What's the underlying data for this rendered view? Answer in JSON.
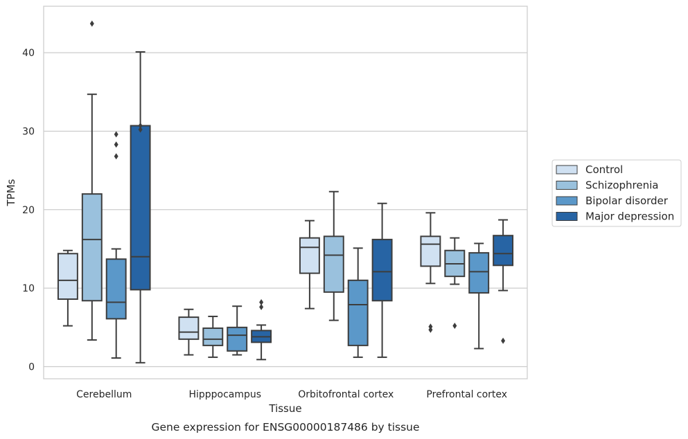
{
  "caption": "Gene expression for ENSG00000187486 by tissue",
  "chart_data": {
    "type": "box",
    "xlabel": "Tissue",
    "ylabel": "TPMs",
    "ylim": [
      -1.6,
      46
    ],
    "yticks": [
      0,
      10,
      20,
      30,
      40
    ],
    "grid": "horizontal",
    "legend_position": "right",
    "categories": [
      "Cerebellum",
      "Hipppocampus",
      "Orbitofrontal cortex",
      "Prefrontal cortex"
    ],
    "series": [
      {
        "name": "Control",
        "color": "#d0e1f2",
        "boxes": [
          {
            "whislo": 5.2,
            "q1": 8.6,
            "med": 11.0,
            "q3": 14.4,
            "whishi": 14.8,
            "fliers": []
          },
          {
            "whislo": 1.5,
            "q1": 3.5,
            "med": 4.4,
            "q3": 6.3,
            "whishi": 7.3,
            "fliers": []
          },
          {
            "whislo": 7.4,
            "q1": 11.9,
            "med": 15.2,
            "q3": 16.4,
            "whishi": 18.6,
            "fliers": []
          },
          {
            "whislo": 10.6,
            "q1": 12.8,
            "med": 15.6,
            "q3": 16.6,
            "whishi": 19.6,
            "fliers": [
              4.7,
              5.1
            ]
          }
        ]
      },
      {
        "name": "Schizophrenia",
        "color": "#9ac1dd",
        "boxes": [
          {
            "whislo": 3.4,
            "q1": 8.4,
            "med": 16.2,
            "q3": 22.0,
            "whishi": 34.7,
            "fliers": [
              43.7
            ]
          },
          {
            "whislo": 1.2,
            "q1": 2.7,
            "med": 3.5,
            "q3": 4.9,
            "whishi": 6.4,
            "fliers": []
          },
          {
            "whislo": 5.9,
            "q1": 9.5,
            "med": 14.2,
            "q3": 16.6,
            "whishi": 22.3,
            "fliers": []
          },
          {
            "whislo": 10.5,
            "q1": 11.5,
            "med": 13.1,
            "q3": 14.8,
            "whishi": 16.4,
            "fliers": [
              5.2
            ]
          }
        ]
      },
      {
        "name": "Bipolar disorder",
        "color": "#5b98c9",
        "boxes": [
          {
            "whislo": 1.1,
            "q1": 6.1,
            "med": 8.2,
            "q3": 13.7,
            "whishi": 15.0,
            "fliers": [
              26.8,
              28.3,
              29.6
            ]
          },
          {
            "whislo": 1.5,
            "q1": 2.0,
            "med": 4.0,
            "q3": 5.0,
            "whishi": 7.7,
            "fliers": []
          },
          {
            "whislo": 1.2,
            "q1": 2.7,
            "med": 7.9,
            "q3": 11.0,
            "whishi": 15.1,
            "fliers": []
          },
          {
            "whislo": 2.3,
            "q1": 9.4,
            "med": 12.1,
            "q3": 14.5,
            "whishi": 15.7,
            "fliers": []
          }
        ]
      },
      {
        "name": "Major depression",
        "color": "#2764a4",
        "boxes": [
          {
            "whislo": 0.5,
            "q1": 9.8,
            "med": 14.0,
            "q3": 30.7,
            "whishi": 40.1,
            "fliers": [
              30.2,
              30.7
            ]
          },
          {
            "whislo": 0.9,
            "q1": 3.1,
            "med": 3.8,
            "q3": 4.6,
            "whishi": 5.3,
            "fliers": [
              7.6,
              8.2
            ]
          },
          {
            "whislo": 1.2,
            "q1": 8.4,
            "med": 12.1,
            "q3": 16.2,
            "whishi": 20.8,
            "fliers": []
          },
          {
            "whislo": 9.7,
            "q1": 12.9,
            "med": 14.4,
            "q3": 16.7,
            "whishi": 18.7,
            "fliers": [
              3.3
            ]
          }
        ]
      }
    ]
  }
}
